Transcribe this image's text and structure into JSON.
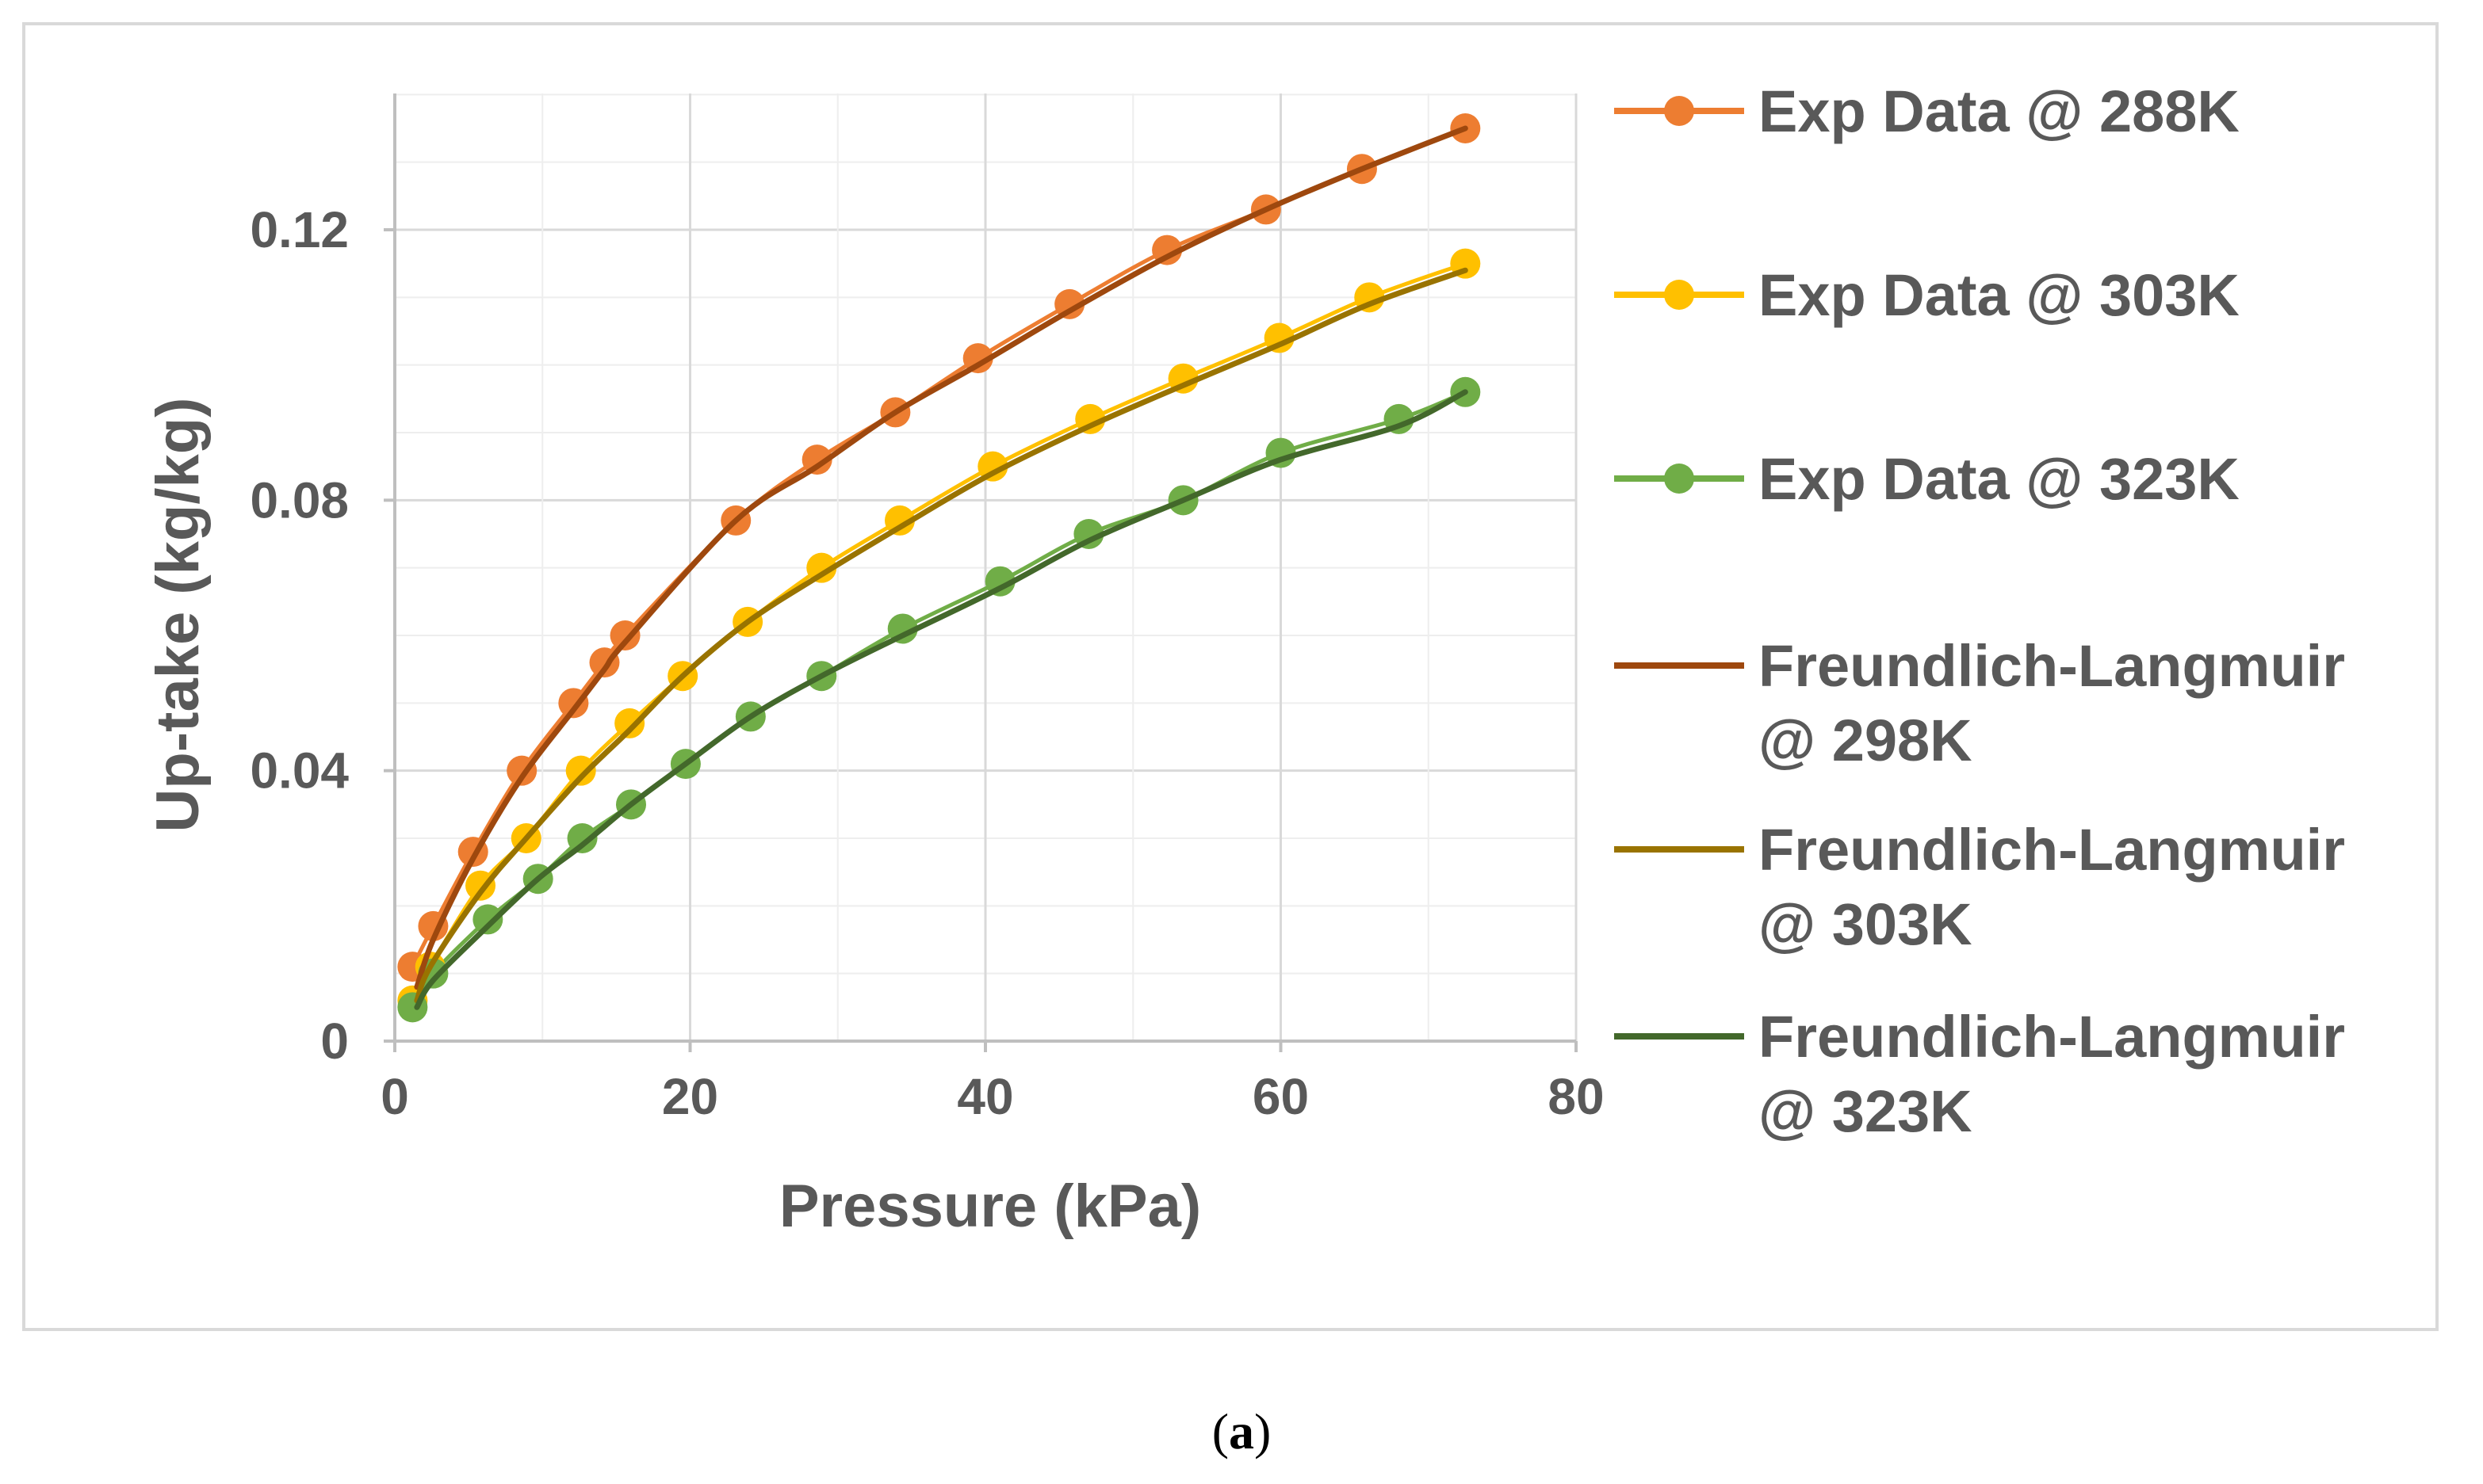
{
  "caption": {
    "open": "(",
    "letter": "a",
    "close": ")"
  },
  "chart_data": {
    "type": "scatter",
    "title": "",
    "xlabel": "Pressure (kPa)",
    "ylabel": "Up-take (kg/kg)",
    "xlim": [
      0,
      80
    ],
    "ylim": [
      0,
      0.14
    ],
    "xticks": [
      0,
      20,
      40,
      60,
      80
    ],
    "yticks": [
      0,
      0.04,
      0.08,
      0.12
    ],
    "xtick_labels": [
      "0",
      "20",
      "40",
      "60",
      "80"
    ],
    "ytick_labels": [
      "0",
      "0.04",
      "0.08",
      "0.12"
    ],
    "grid": true,
    "legend_position": "right",
    "series": [
      {
        "name": "Exp Data @ 288K",
        "kind": "marker-line",
        "color": "#ED7D31",
        "x": [
          1.2,
          2.6,
          5.3,
          8.6,
          12.1,
          14.2,
          15.6,
          23.1,
          28.6,
          33.9,
          39.5,
          45.7,
          52.3,
          59.0,
          65.5,
          72.5
        ],
        "y": [
          0.011,
          0.017,
          0.028,
          0.04,
          0.05,
          0.056,
          0.06,
          0.077,
          0.086,
          0.093,
          0.101,
          0.109,
          0.117,
          0.123,
          0.129,
          0.135
        ]
      },
      {
        "name": "Exp Data @ 303K",
        "kind": "marker-line",
        "color": "#FFC000",
        "x": [
          1.2,
          2.4,
          5.8,
          8.9,
          12.6,
          15.9,
          19.5,
          23.9,
          28.9,
          34.2,
          40.5,
          47.1,
          53.4,
          59.9,
          66.0,
          72.5
        ],
        "y": [
          0.006,
          0.011,
          0.023,
          0.03,
          0.04,
          0.047,
          0.054,
          0.062,
          0.07,
          0.077,
          0.085,
          0.092,
          0.098,
          0.104,
          0.11,
          0.115
        ]
      },
      {
        "name": "Exp Data @ 323K",
        "kind": "marker-line",
        "color": "#70AD47",
        "x": [
          1.2,
          2.6,
          6.3,
          9.7,
          12.7,
          16.0,
          19.7,
          24.1,
          28.9,
          34.4,
          41.0,
          47.0,
          53.4,
          60.0,
          68.0,
          72.5
        ],
        "y": [
          0.005,
          0.01,
          0.018,
          0.024,
          0.03,
          0.035,
          0.041,
          0.048,
          0.054,
          0.061,
          0.068,
          0.075,
          0.08,
          0.087,
          0.092,
          0.096
        ]
      },
      {
        "name": "Freundlich-Langmuir @ 298K",
        "kind": "line",
        "color": "#9E480E",
        "x": [
          1.5,
          2.6,
          5.3,
          8.6,
          12.1,
          14.2,
          15.6,
          23.1,
          28.6,
          33.9,
          39.5,
          45.7,
          52.3,
          59.0,
          65.5,
          72.5
        ],
        "y": [
          0.008,
          0.015,
          0.027,
          0.039,
          0.049,
          0.055,
          0.059,
          0.077,
          0.085,
          0.093,
          0.1,
          0.108,
          0.116,
          0.123,
          0.129,
          0.135
        ]
      },
      {
        "name": "Freundlich-Langmuir @ 303K",
        "kind": "line",
        "color": "#997300",
        "x": [
          1.5,
          2.4,
          5.8,
          8.9,
          12.6,
          15.9,
          19.5,
          23.9,
          28.9,
          34.2,
          40.5,
          47.1,
          53.4,
          59.9,
          66.0,
          72.5
        ],
        "y": [
          0.006,
          0.011,
          0.022,
          0.03,
          0.039,
          0.046,
          0.054,
          0.062,
          0.069,
          0.076,
          0.084,
          0.091,
          0.097,
          0.103,
          0.109,
          0.114
        ]
      },
      {
        "name": "Freundlich-Langmuir @ 323K",
        "kind": "line",
        "color": "#43682B",
        "x": [
          1.5,
          2.6,
          6.3,
          9.7,
          12.7,
          16.0,
          19.7,
          24.1,
          28.9,
          34.4,
          41.0,
          47.0,
          53.4,
          60.0,
          68.0,
          72.5
        ],
        "y": [
          0.005,
          0.009,
          0.017,
          0.024,
          0.029,
          0.035,
          0.041,
          0.048,
          0.054,
          0.06,
          0.067,
          0.074,
          0.08,
          0.086,
          0.091,
          0.096
        ]
      }
    ],
    "legend": [
      {
        "lines": [
          "Exp Data @ 288K"
        ]
      },
      {
        "lines": [
          "Exp Data @ 303K"
        ]
      },
      {
        "lines": [
          "Exp Data @ 323K"
        ]
      },
      {
        "lines": [
          "Freundlich-Langmuir",
          "@ 298K"
        ]
      },
      {
        "lines": [
          "Freundlich-Langmuir",
          "@ 303K"
        ]
      },
      {
        "lines": [
          "Freundlich-Langmuir",
          "@ 323K"
        ]
      }
    ]
  }
}
